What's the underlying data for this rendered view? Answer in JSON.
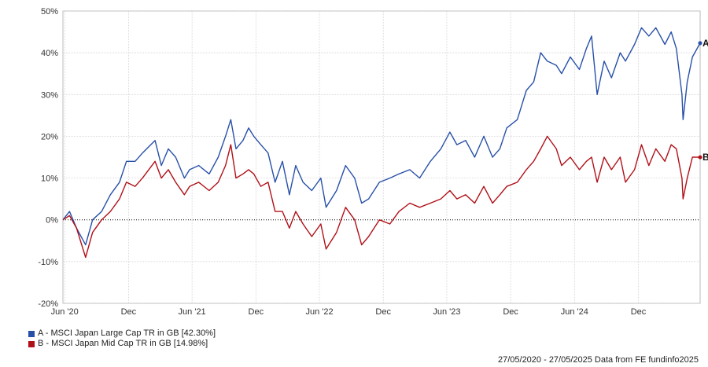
{
  "chart_data": {
    "type": "line",
    "title": "",
    "xlabel": "",
    "ylabel": "",
    "ylim": [
      -20,
      50
    ],
    "y_ticks": [
      -20,
      -10,
      0,
      10,
      20,
      30,
      40,
      50
    ],
    "y_tick_labels": [
      "-20%",
      "-10%",
      "0%",
      "10%",
      "20%",
      "30%",
      "40%",
      "50%"
    ],
    "x_range": [
      "2020-05-27",
      "2025-05-27"
    ],
    "x_ticks": [
      {
        "date": "2020-06-01",
        "label": "Jun '20"
      },
      {
        "date": "2020-12-01",
        "label": "Dec"
      },
      {
        "date": "2021-06-01",
        "label": "Jun '21"
      },
      {
        "date": "2021-12-01",
        "label": "Dec"
      },
      {
        "date": "2022-06-01",
        "label": "Jun '22"
      },
      {
        "date": "2022-12-01",
        "label": "Dec"
      },
      {
        "date": "2023-06-01",
        "label": "Jun '23"
      },
      {
        "date": "2023-12-01",
        "label": "Dec"
      },
      {
        "date": "2024-06-01",
        "label": "Jun '24"
      },
      {
        "date": "2024-12-01",
        "label": "Dec"
      }
    ],
    "grid": true,
    "zero_line": "dotted",
    "series": [
      {
        "name": "A - MSCI Japan Large Cap TR in GB [42.30%]",
        "end_label": "A",
        "color": "#2850a8",
        "points": [
          [
            "2020-05-27",
            0
          ],
          [
            "2020-06-15",
            2
          ],
          [
            "2020-07-05",
            -2
          ],
          [
            "2020-07-31",
            -6
          ],
          [
            "2020-08-20",
            0
          ],
          [
            "2020-09-15",
            2
          ],
          [
            "2020-10-10",
            6
          ],
          [
            "2020-11-05",
            9
          ],
          [
            "2020-11-25",
            14
          ],
          [
            "2020-12-20",
            14
          ],
          [
            "2021-01-10",
            16
          ],
          [
            "2021-02-15",
            19
          ],
          [
            "2021-03-05",
            13
          ],
          [
            "2021-03-25",
            17
          ],
          [
            "2021-04-15",
            15
          ],
          [
            "2021-05-10",
            10
          ],
          [
            "2021-05-25",
            12
          ],
          [
            "2021-06-20",
            13
          ],
          [
            "2021-07-20",
            11
          ],
          [
            "2021-08-15",
            15
          ],
          [
            "2021-09-05",
            20
          ],
          [
            "2021-09-20",
            24
          ],
          [
            "2021-10-05",
            17
          ],
          [
            "2021-10-25",
            19
          ],
          [
            "2021-11-10",
            22
          ],
          [
            "2021-11-25",
            20
          ],
          [
            "2021-12-15",
            18
          ],
          [
            "2022-01-05",
            16
          ],
          [
            "2022-01-25",
            9
          ],
          [
            "2022-02-15",
            14
          ],
          [
            "2022-03-07",
            6
          ],
          [
            "2022-03-25",
            13
          ],
          [
            "2022-04-15",
            9
          ],
          [
            "2022-05-10",
            7
          ],
          [
            "2022-06-05",
            10
          ],
          [
            "2022-06-20",
            3
          ],
          [
            "2022-07-20",
            7
          ],
          [
            "2022-08-15",
            13
          ],
          [
            "2022-09-10",
            10
          ],
          [
            "2022-09-30",
            4
          ],
          [
            "2022-10-20",
            5
          ],
          [
            "2022-11-20",
            9
          ],
          [
            "2022-12-20",
            10
          ],
          [
            "2023-01-15",
            11
          ],
          [
            "2023-02-15",
            12
          ],
          [
            "2023-03-15",
            10
          ],
          [
            "2023-04-15",
            14
          ],
          [
            "2023-05-15",
            17
          ],
          [
            "2023-06-10",
            21
          ],
          [
            "2023-06-30",
            18
          ],
          [
            "2023-07-25",
            19
          ],
          [
            "2023-08-20",
            15
          ],
          [
            "2023-09-15",
            20
          ],
          [
            "2023-10-10",
            15
          ],
          [
            "2023-10-31",
            17
          ],
          [
            "2023-11-20",
            22
          ],
          [
            "2023-12-20",
            24
          ],
          [
            "2024-01-15",
            31
          ],
          [
            "2024-02-05",
            33
          ],
          [
            "2024-02-25",
            40
          ],
          [
            "2024-03-15",
            38
          ],
          [
            "2024-04-10",
            37
          ],
          [
            "2024-04-25",
            35
          ],
          [
            "2024-05-20",
            39
          ],
          [
            "2024-06-15",
            36
          ],
          [
            "2024-07-05",
            41
          ],
          [
            "2024-07-20",
            44
          ],
          [
            "2024-08-05",
            30
          ],
          [
            "2024-08-25",
            38
          ],
          [
            "2024-09-15",
            34
          ],
          [
            "2024-10-10",
            40
          ],
          [
            "2024-10-25",
            38
          ],
          [
            "2024-11-20",
            42
          ],
          [
            "2024-12-10",
            46
          ],
          [
            "2024-12-31",
            44
          ],
          [
            "2025-01-20",
            46
          ],
          [
            "2025-02-15",
            42
          ],
          [
            "2025-03-05",
            45
          ],
          [
            "2025-03-20",
            41
          ],
          [
            "2025-04-05",
            30
          ],
          [
            "2025-04-08",
            24
          ],
          [
            "2025-04-20",
            33
          ],
          [
            "2025-05-05",
            39
          ],
          [
            "2025-05-27",
            42.3
          ]
        ]
      },
      {
        "name": "B - MSCI Japan Mid Cap TR in GB [14.98%]",
        "end_label": "B",
        "color": "#b01018",
        "points": [
          [
            "2020-05-27",
            0
          ],
          [
            "2020-06-15",
            1
          ],
          [
            "2020-07-05",
            -2
          ],
          [
            "2020-07-31",
            -9
          ],
          [
            "2020-08-20",
            -3
          ],
          [
            "2020-09-15",
            0
          ],
          [
            "2020-10-10",
            2
          ],
          [
            "2020-11-05",
            5
          ],
          [
            "2020-11-25",
            9
          ],
          [
            "2020-12-20",
            8
          ],
          [
            "2021-01-10",
            10
          ],
          [
            "2021-02-15",
            14
          ],
          [
            "2021-03-05",
            10
          ],
          [
            "2021-03-25",
            12
          ],
          [
            "2021-04-15",
            9
          ],
          [
            "2021-05-10",
            6
          ],
          [
            "2021-05-25",
            8
          ],
          [
            "2021-06-20",
            9
          ],
          [
            "2021-07-20",
            7
          ],
          [
            "2021-08-15",
            9
          ],
          [
            "2021-09-05",
            13
          ],
          [
            "2021-09-20",
            18
          ],
          [
            "2021-10-05",
            10
          ],
          [
            "2021-10-25",
            11
          ],
          [
            "2021-11-10",
            12
          ],
          [
            "2021-11-25",
            11
          ],
          [
            "2021-12-15",
            8
          ],
          [
            "2022-01-05",
            9
          ],
          [
            "2022-01-25",
            2
          ],
          [
            "2022-02-15",
            2
          ],
          [
            "2022-03-07",
            -2
          ],
          [
            "2022-03-25",
            2
          ],
          [
            "2022-04-15",
            -1
          ],
          [
            "2022-05-10",
            -4
          ],
          [
            "2022-06-05",
            -1
          ],
          [
            "2022-06-20",
            -7
          ],
          [
            "2022-07-20",
            -3
          ],
          [
            "2022-08-15",
            3
          ],
          [
            "2022-09-10",
            0
          ],
          [
            "2022-09-30",
            -6
          ],
          [
            "2022-10-20",
            -4
          ],
          [
            "2022-11-20",
            0
          ],
          [
            "2022-12-20",
            -1
          ],
          [
            "2023-01-15",
            2
          ],
          [
            "2023-02-15",
            4
          ],
          [
            "2023-03-15",
            3
          ],
          [
            "2023-04-15",
            4
          ],
          [
            "2023-05-15",
            5
          ],
          [
            "2023-06-10",
            7
          ],
          [
            "2023-06-30",
            5
          ],
          [
            "2023-07-25",
            6
          ],
          [
            "2023-08-20",
            4
          ],
          [
            "2023-09-15",
            8
          ],
          [
            "2023-10-10",
            4
          ],
          [
            "2023-10-31",
            6
          ],
          [
            "2023-11-20",
            8
          ],
          [
            "2023-12-20",
            9
          ],
          [
            "2024-01-15",
            12
          ],
          [
            "2024-02-05",
            14
          ],
          [
            "2024-02-25",
            17
          ],
          [
            "2024-03-15",
            20
          ],
          [
            "2024-04-10",
            17
          ],
          [
            "2024-04-25",
            13
          ],
          [
            "2024-05-20",
            15
          ],
          [
            "2024-06-15",
            12
          ],
          [
            "2024-07-05",
            14
          ],
          [
            "2024-07-20",
            15
          ],
          [
            "2024-08-05",
            9
          ],
          [
            "2024-08-25",
            15
          ],
          [
            "2024-09-15",
            12
          ],
          [
            "2024-10-10",
            15
          ],
          [
            "2024-10-25",
            9
          ],
          [
            "2024-11-20",
            12
          ],
          [
            "2024-12-10",
            18
          ],
          [
            "2024-12-31",
            13
          ],
          [
            "2025-01-20",
            17
          ],
          [
            "2025-02-15",
            14
          ],
          [
            "2025-03-05",
            18
          ],
          [
            "2025-03-20",
            17
          ],
          [
            "2025-04-05",
            10
          ],
          [
            "2025-04-08",
            5
          ],
          [
            "2025-04-20",
            10
          ],
          [
            "2025-05-05",
            15
          ],
          [
            "2025-05-27",
            14.98
          ]
        ]
      }
    ]
  },
  "legend": {
    "items": [
      {
        "label": "A - MSCI Japan Large Cap TR in GB [42.30%]",
        "color": "#2850a8"
      },
      {
        "label": "B - MSCI Japan Mid Cap TR in GB [14.98%]",
        "color": "#b01018"
      }
    ]
  },
  "footer": {
    "text": "27/05/2020 - 27/05/2025 Data from FE fundinfo2025"
  }
}
